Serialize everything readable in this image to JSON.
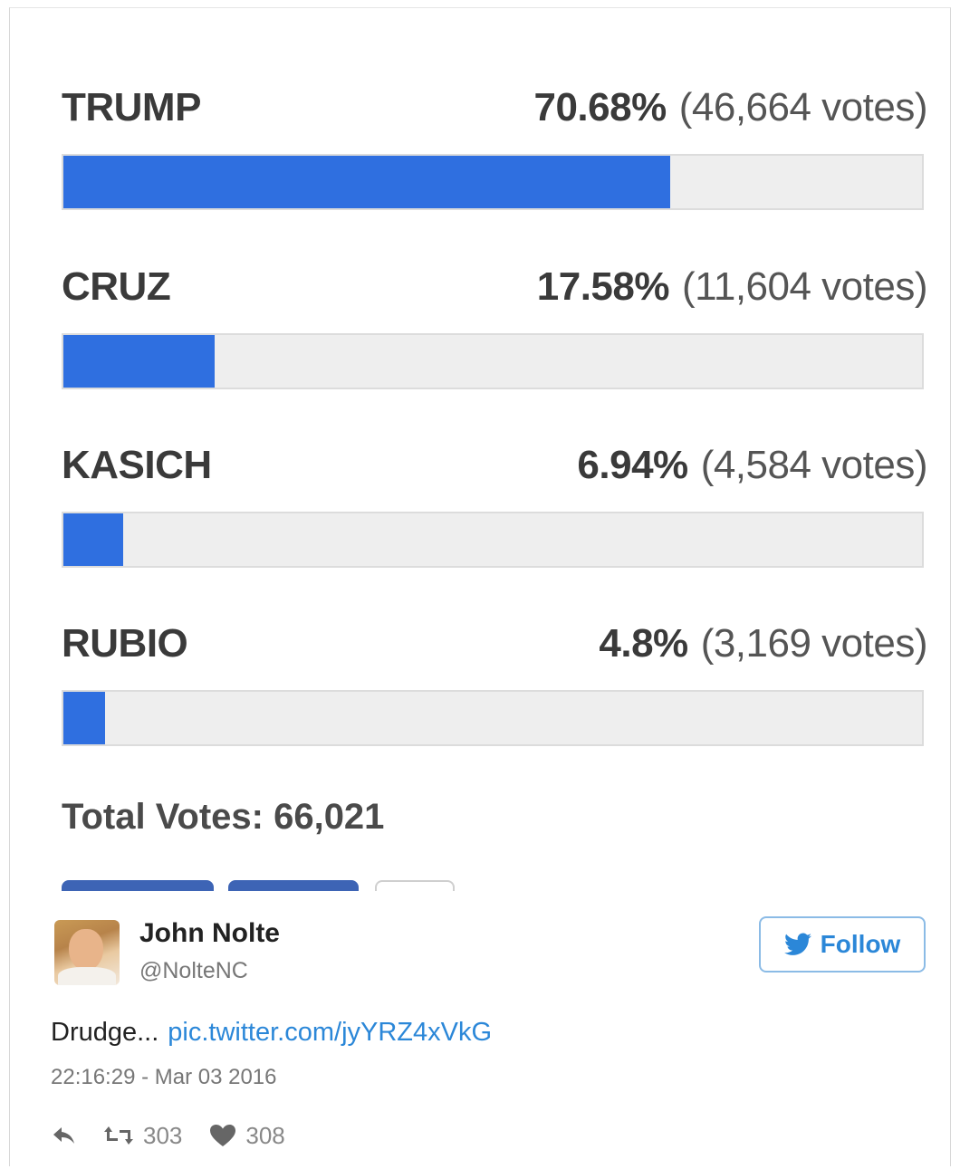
{
  "poll": {
    "candidates": [
      {
        "name": "TRUMP",
        "percent_label": "70.68%",
        "votes_label": "(46,664 votes)",
        "fill": 0.7068
      },
      {
        "name": "CRUZ",
        "percent_label": "17.58%",
        "votes_label": "(11,604 votes)",
        "fill": 0.1758
      },
      {
        "name": "KASICH",
        "percent_label": "6.94%",
        "votes_label": "(4,584 votes)",
        "fill": 0.0694
      },
      {
        "name": "RUBIO",
        "percent_label": "4.8%",
        "votes_label": "(3,169 votes)",
        "fill": 0.048
      }
    ],
    "total_label": "Total Votes: 66,021"
  },
  "tweet": {
    "author_name": "John Nolte",
    "author_handle": "@NolteNC",
    "follow_label": "Follow",
    "text": "Drudge...",
    "link": "pic.twitter.com/jyYRZ4xVkG",
    "timestamp": "22:16:29 - Mar 03 2016",
    "retweets": "303",
    "likes": "308"
  },
  "colors": {
    "bar_fill": "#2f6fe0",
    "bar_track": "#eeeeee",
    "twitter_blue": "#2b87d8",
    "stub_blue": "#3d64b5"
  },
  "icons": {
    "reply": "reply-icon",
    "retweet": "retweet-icon",
    "like": "heart-icon",
    "follow": "twitter-bird-icon"
  }
}
